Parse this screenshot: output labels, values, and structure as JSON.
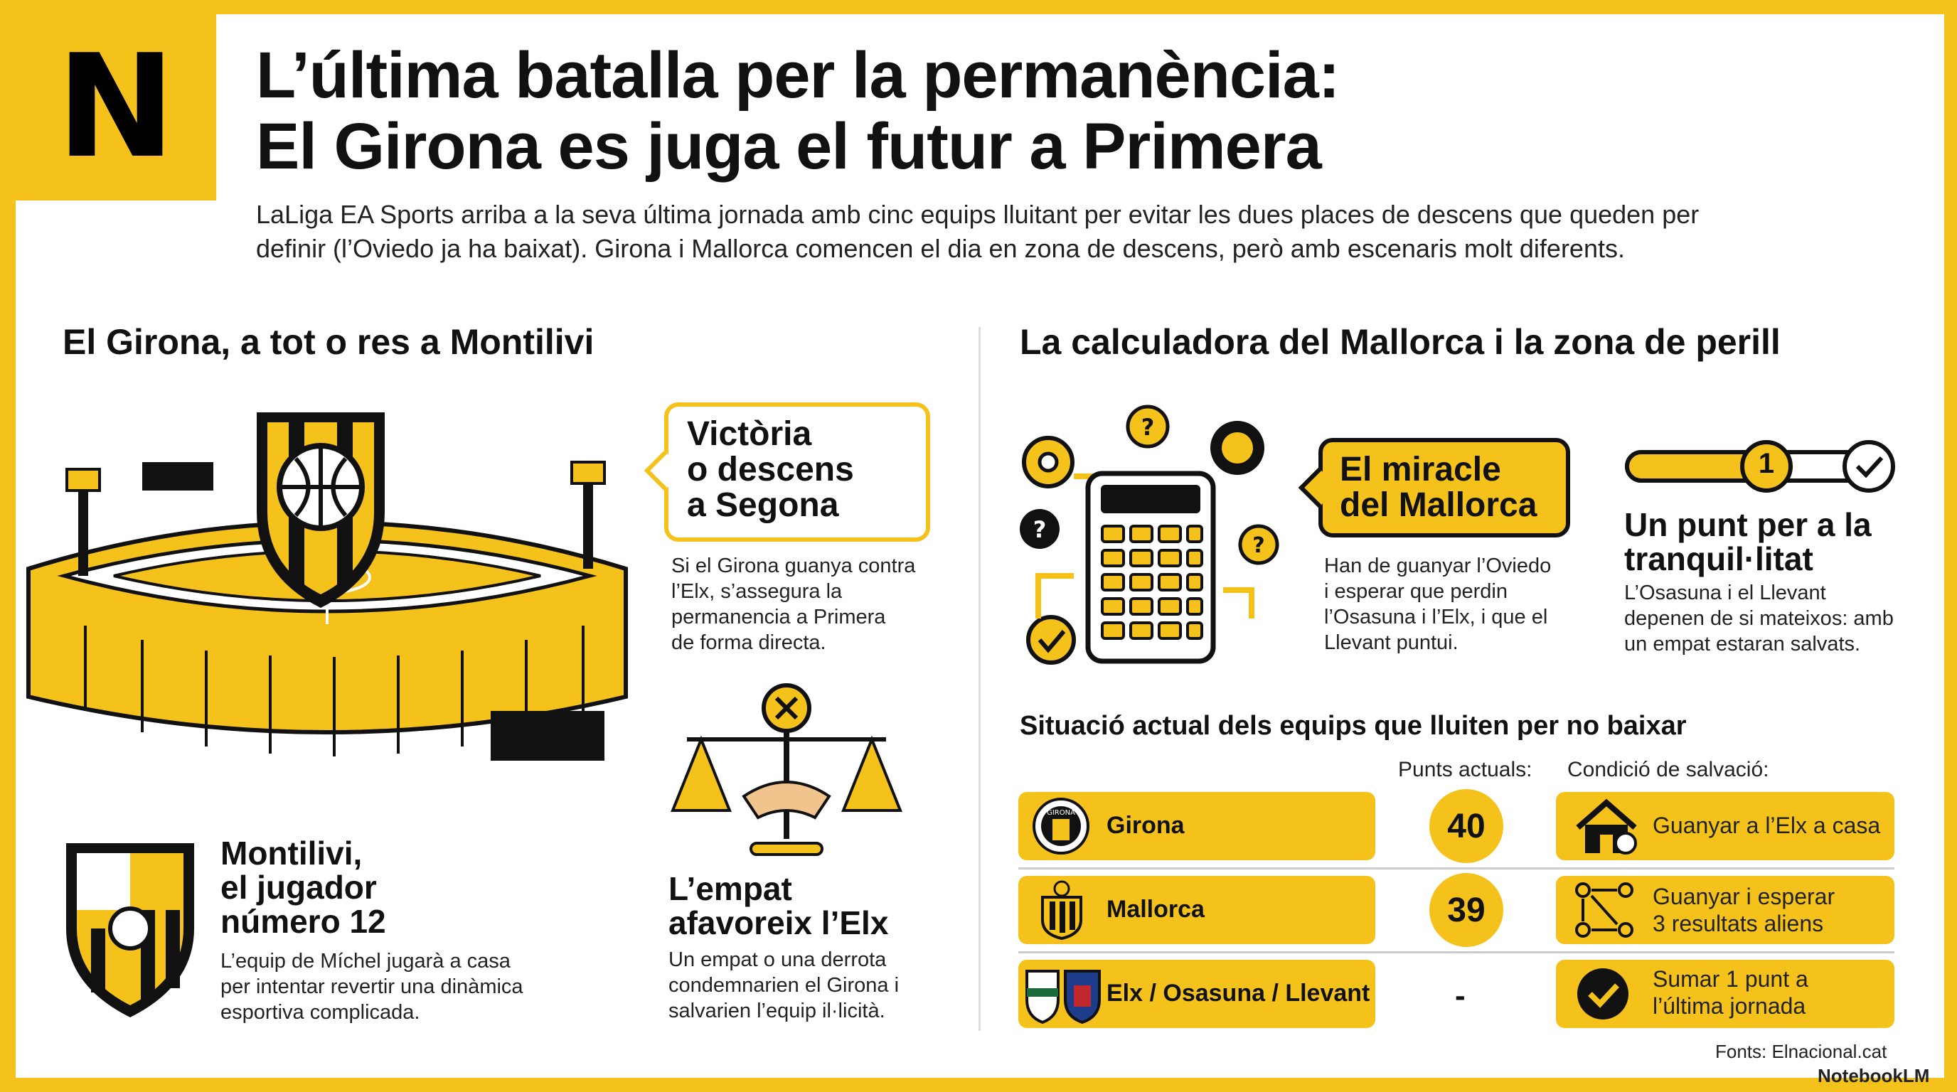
{
  "header": {
    "logo_letter": "N",
    "title_line1": "L’última batalla per la permanència:",
    "title_line2": "El Girona es juga el futur a Primera",
    "subtitle_line1": "LaLiga EA Sports arriba a la seva última jornada amb cinc equips lluitant per evitar les dues places de descens que queden per",
    "subtitle_line2": "definir (l’Oviedo ja ha baixat). Girona i Mallorca comencen el dia en zona de descens, però amb escenaris molt diferents."
  },
  "left": {
    "heading": "El Girona, a tot o res a Montilivi",
    "callout": {
      "line1": "Victòria",
      "line2": "o descens",
      "line3": "a Segona"
    },
    "callout_body": {
      "line1": "Si el Girona guanya contra",
      "line2": "l’Elx, s’assegura la",
      "line3": "permanencia a Primera",
      "line4": "de forma directa."
    },
    "montilivi": {
      "title1": "Montilivi,",
      "title2": "el jugador",
      "title3": "número 12",
      "body1": "L’equip de Míchel jugarà a casa",
      "body2": "per intentar revertir una dinàmica",
      "body3": "esportiva complicada."
    },
    "empat": {
      "title1": "L’empat",
      "title2": "afavoreix l’Elx",
      "body1": "Un empat o una derrota",
      "body2": "condemnarien el Girona i",
      "body3": "salvarien l’equip il·licità."
    }
  },
  "right": {
    "heading": "La calculadora del Mallorca i la zona de perill",
    "miracle": {
      "title1": "El miracle",
      "title2": "del Mallorca",
      "body1": "Han de guanyar l’Oviedo",
      "body2": "i esperar que perdin",
      "body3": "l’Osasuna i l’Elx, i que el",
      "body4": "Llevant puntui."
    },
    "punt": {
      "badge": "1",
      "title1": "Un punt per a la",
      "title2": "tranquil·litat",
      "body1": "L’Osasuna i el Llevant",
      "body2": "depenen de si mateixos: amb",
      "body3": "un empat estaran salvats."
    },
    "table": {
      "heading": "Situació actual dels equips que lluiten per no baixar",
      "col_points": "Punts actuals:",
      "col_condition": "Condició de salvació:",
      "rows": [
        {
          "team": "Girona",
          "points": "40",
          "cond1": "Guanyar a l’Elx a casa",
          "cond2": ""
        },
        {
          "team": "Mallorca",
          "points": "39",
          "cond1": "Guanyar i esperar",
          "cond2": "3 resultats aliens"
        },
        {
          "team": "Elx / Osasuna / Llevant",
          "points": "-",
          "cond1": "Sumar 1 punt a",
          "cond2": "l’última jornada"
        }
      ]
    },
    "crest_text": "GIRONA"
  },
  "footer": {
    "source": "Fonts: Elnacional.cat",
    "brand": "NotebookLM"
  },
  "colors": {
    "accent": "#F5C21B",
    "ink": "#111111"
  }
}
